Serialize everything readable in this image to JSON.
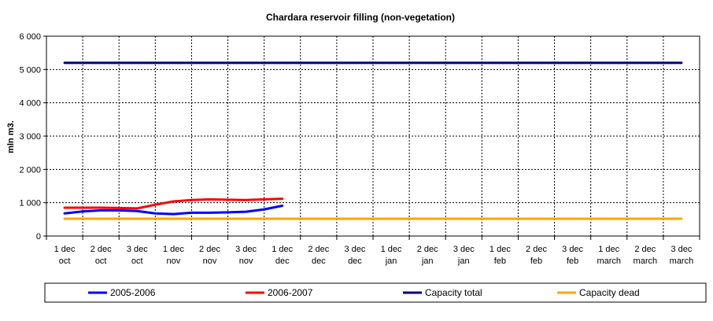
{
  "chart_data": {
    "type": "line",
    "title": "Chardara reservoir filling  (non-vegetation)",
    "ylabel": "mln m3.",
    "xlabel": "",
    "ylim": [
      0,
      6000
    ],
    "y_ticks": [
      "0",
      "1 000",
      "2 000",
      "3 000",
      "4 000",
      "5 000",
      "6 000"
    ],
    "y_tick_values": [
      0,
      1000,
      2000,
      3000,
      4000,
      5000,
      6000
    ],
    "grid": true,
    "legend_position": "bottom",
    "categories": [
      [
        "1 dec",
        "oct"
      ],
      [
        "2 dec",
        "oct"
      ],
      [
        "3 dec",
        "oct"
      ],
      [
        "1 dec",
        "nov"
      ],
      [
        "2 dec",
        "nov"
      ],
      [
        "3 dec",
        "nov"
      ],
      [
        "1 dec",
        "dec"
      ],
      [
        "2 dec",
        "dec"
      ],
      [
        "3 dec",
        "dec"
      ],
      [
        "1 dec",
        "jan"
      ],
      [
        "2 dec",
        "jan"
      ],
      [
        "3 dec",
        "jan"
      ],
      [
        "1 dec",
        "feb"
      ],
      [
        "2 dec",
        "feb"
      ],
      [
        "3 dec",
        "feb"
      ],
      [
        "1 dec",
        "march"
      ],
      [
        "2 dec",
        "march"
      ],
      [
        "3 dec",
        "march"
      ]
    ],
    "series": [
      {
        "name": "2005-2006",
        "color": "#0000ff",
        "x": [
          0,
          0.5,
          1,
          1.5,
          2,
          2.5,
          3,
          3.5,
          4,
          4.5,
          5,
          5.5,
          6
        ],
        "y": [
          680,
          740,
          770,
          770,
          750,
          680,
          660,
          700,
          700,
          710,
          730,
          800,
          910
        ]
      },
      {
        "name": "2006-2007",
        "color": "#ff0000",
        "x": [
          0,
          0.5,
          1,
          1.5,
          2,
          2.5,
          3,
          3.5,
          4,
          4.5,
          5,
          5.5,
          6
        ],
        "y": [
          850,
          850,
          850,
          840,
          830,
          940,
          1040,
          1080,
          1100,
          1090,
          1080,
          1100,
          1120
        ]
      },
      {
        "name": "Capacity total",
        "color": "#000080",
        "x": [
          0,
          17
        ],
        "y": [
          5200,
          5200
        ]
      },
      {
        "name": "Capacity dead",
        "color": "#ffa500",
        "x": [
          0,
          17
        ],
        "y": [
          520,
          520
        ]
      }
    ]
  }
}
